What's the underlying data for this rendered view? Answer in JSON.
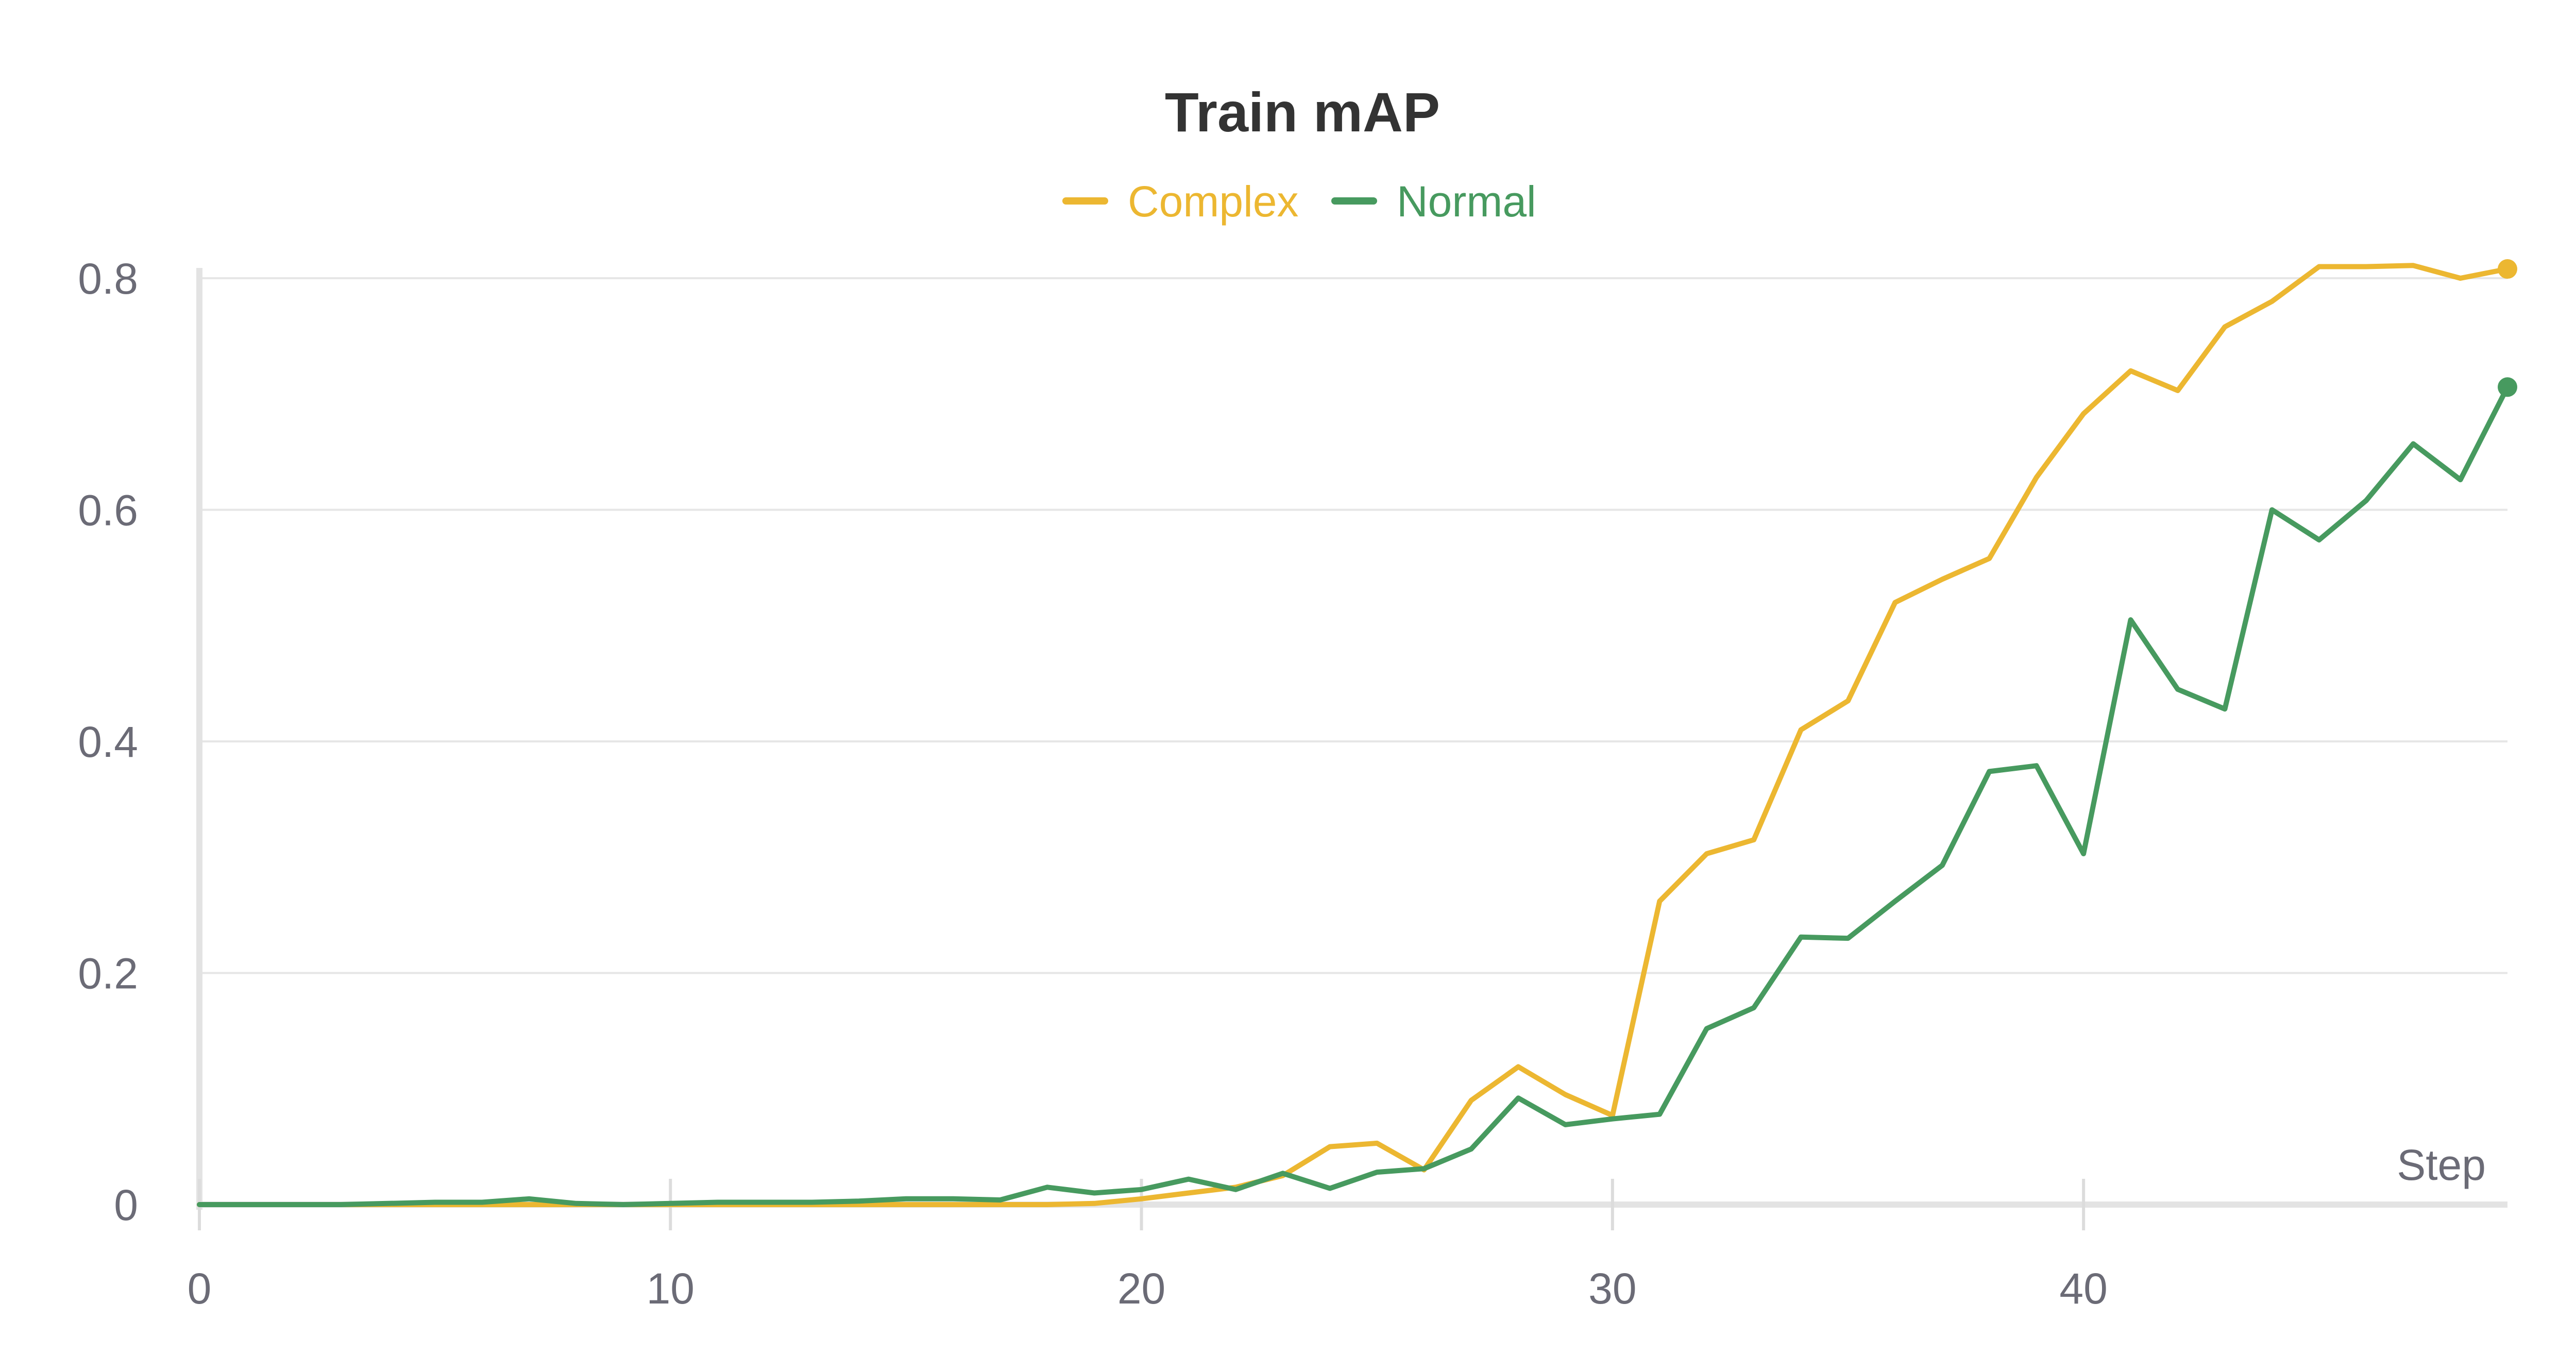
{
  "chart_data": {
    "type": "line",
    "title": "Train mAP",
    "xlabel": "Step",
    "ylabel": "",
    "xlim": [
      0,
      49
    ],
    "ylim": [
      0,
      0.8
    ],
    "x_ticks": [
      "0",
      "10",
      "20",
      "30",
      "40"
    ],
    "y_ticks": [
      "0",
      "0.2",
      "0.4",
      "0.6",
      "0.8"
    ],
    "grid": true,
    "legend_position": "top-center",
    "x": [
      0,
      1,
      2,
      3,
      4,
      5,
      6,
      7,
      8,
      9,
      10,
      11,
      12,
      13,
      14,
      15,
      16,
      17,
      18,
      19,
      20,
      21,
      22,
      23,
      24,
      25,
      26,
      27,
      28,
      29,
      30,
      31,
      32,
      33,
      34,
      35,
      36,
      37,
      38,
      39,
      40,
      41,
      42,
      43,
      44,
      45,
      46,
      47,
      48,
      49
    ],
    "series": [
      {
        "name": "Complex",
        "color": "#ecb731",
        "values": [
          0,
          0,
          0,
          0,
          0,
          0,
          0,
          0,
          0,
          0,
          0,
          0,
          0,
          0,
          0,
          0,
          0,
          0,
          0,
          0.001,
          0.005,
          0.01,
          0.015,
          0.025,
          0.05,
          0.053,
          0.03,
          0.09,
          0.119,
          0.095,
          0.077,
          0.262,
          0.303,
          0.315,
          0.41,
          0.435,
          0.52,
          0.54,
          0.558,
          0.628,
          0.683,
          0.72,
          0.703,
          0.758,
          0.78,
          0.81,
          0.81,
          0.811,
          0.8,
          0.808
        ]
      },
      {
        "name": "Normal",
        "color": "#479a5f",
        "values": [
          0,
          0,
          0,
          0,
          0.001,
          0.002,
          0.002,
          0.005,
          0.001,
          0,
          0.001,
          0.002,
          0.002,
          0.002,
          0.003,
          0.005,
          0.005,
          0.004,
          0.015,
          0.01,
          0.013,
          0.022,
          0.013,
          0.027,
          0.014,
          0.028,
          0.031,
          0.048,
          0.092,
          0.069,
          0.074,
          0.078,
          0.152,
          0.17,
          0.231,
          0.23,
          0.262,
          0.293,
          0.374,
          0.379,
          0.303,
          0.505,
          0.445,
          0.428,
          0.6,
          0.574,
          0.608,
          0.657,
          0.626,
          0.706
        ]
      }
    ]
  }
}
